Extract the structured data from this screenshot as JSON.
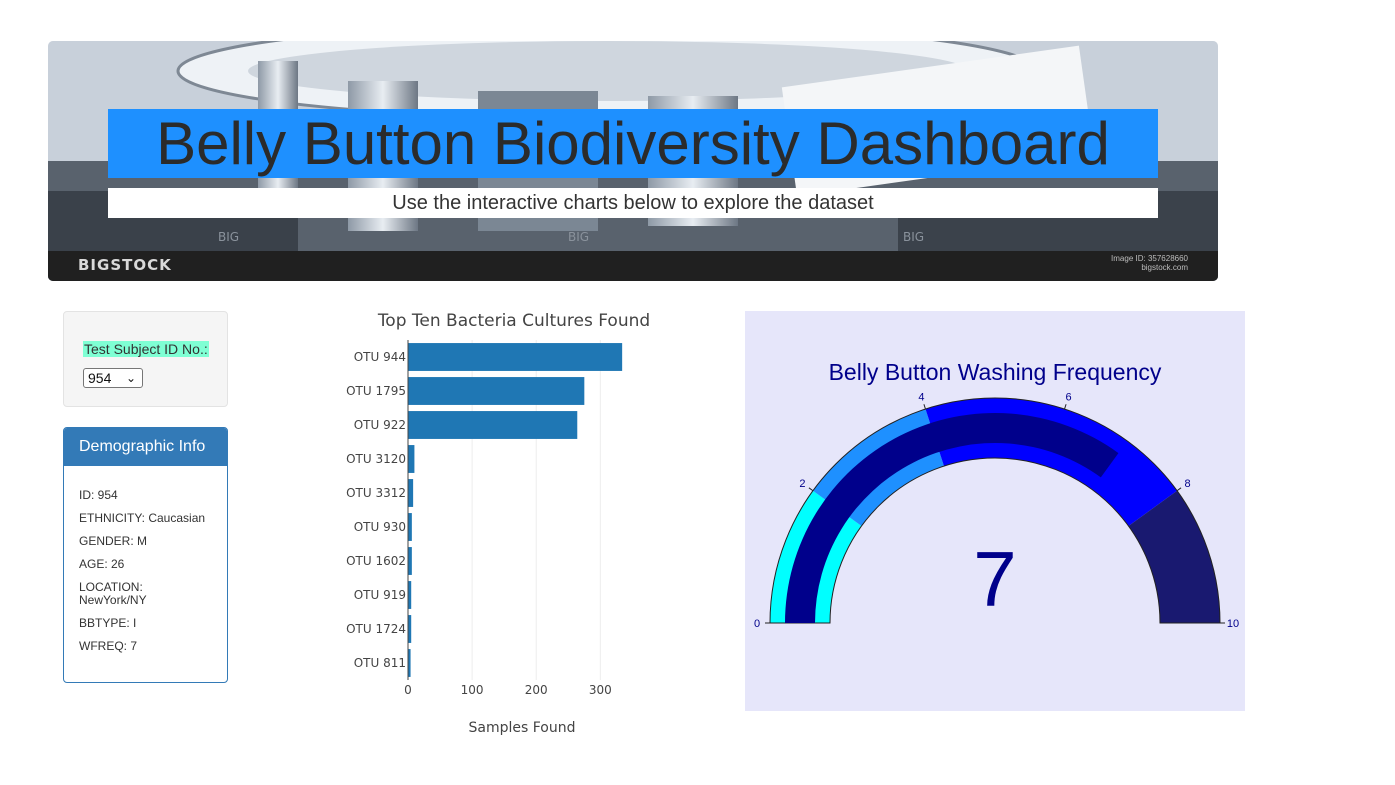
{
  "header": {
    "title": "Belly Button Biodiversity Dashboard",
    "subtitle": "Use the interactive charts below to explore the dataset",
    "stock_logo": "BIGSTOCK",
    "stock_id_line1": "Image ID: 357628660",
    "stock_id_line2": "bigstock.com",
    "watermark": "BIG"
  },
  "selector": {
    "label": "Test Subject ID No.:",
    "value": "954"
  },
  "demographics": {
    "title": "Demographic Info",
    "lines": [
      "ID: 954",
      "ETHNICITY: Caucasian",
      "GENDER: M",
      "AGE: 26",
      "LOCATION: NewYork/NY",
      "BBTYPE: I",
      "WFREQ: 7"
    ]
  },
  "chart_data": [
    {
      "type": "bar",
      "orientation": "horizontal",
      "title": "Top Ten Bacteria Cultures Found",
      "xlabel": "Samples Found",
      "ylabel": "",
      "categories": [
        "OTU 944",
        "OTU 1795",
        "OTU 922",
        "OTU 3120",
        "OTU 3312",
        "OTU 930",
        "OTU 1602",
        "OTU 919",
        "OTU 1724",
        "OTU 811"
      ],
      "values": [
        334,
        275,
        264,
        10,
        8,
        6,
        6,
        5,
        5,
        4
      ],
      "xlim": [
        0,
        340
      ],
      "xticks": [
        0,
        100,
        200,
        300
      ],
      "color": "#1f77b4",
      "grid": true
    },
    {
      "type": "gauge",
      "title": "Belly Button Washing Frequency",
      "value": 7,
      "range": [
        0,
        10
      ],
      "ticks": [
        0,
        2,
        4,
        6,
        8,
        10
      ],
      "steps": [
        {
          "range": [
            0,
            2
          ],
          "color": "#00ffff"
        },
        {
          "range": [
            2,
            4
          ],
          "color": "#1e90ff"
        },
        {
          "range": [
            4,
            8
          ],
          "color": "#0000ff"
        },
        {
          "range": [
            8,
            10
          ],
          "color": "#191970"
        }
      ],
      "bar_color": "#00008b",
      "background": "#e6e6fa"
    }
  ]
}
